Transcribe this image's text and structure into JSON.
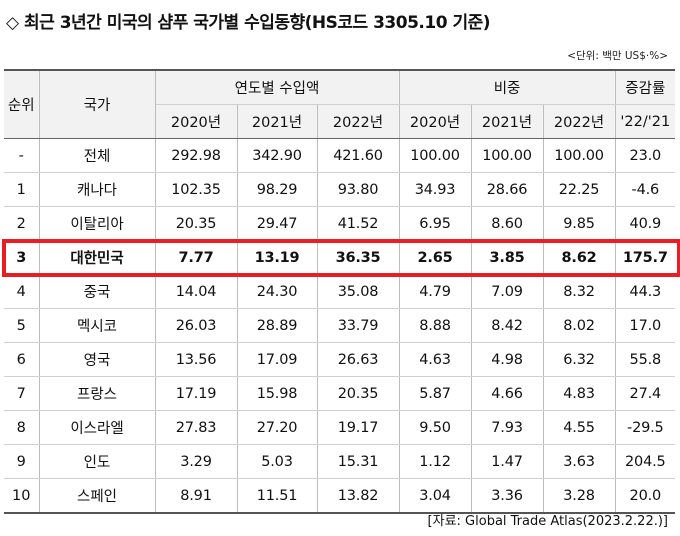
{
  "title": "◇ 최근 3년간 미국의 샴푸 국가별 수입동향(HS코드 3305.10 기준)",
  "unit_note": "<단위: 백만 US$·%>",
  "header": {
    "rank": "순위",
    "country": "국가",
    "import_group": "연도별 수입액",
    "share_group": "비중",
    "growth_group": "증감률",
    "years": [
      "2020년",
      "2021년",
      "2022년"
    ],
    "growth_period": "'22/'21"
  },
  "rows": [
    [
      "-",
      "전체",
      "292.98",
      "342.90",
      "421.60",
      "100.00",
      "100.00",
      "100.00",
      "23.0"
    ],
    [
      "1",
      "캐나다",
      "102.35",
      "98.29",
      "93.80",
      "34.93",
      "28.66",
      "22.25",
      "-4.6"
    ],
    [
      "2",
      "이탈리아",
      "20.35",
      "29.47",
      "41.52",
      "6.95",
      "8.60",
      "9.85",
      "40.9"
    ],
    [
      "3",
      "대한민국",
      "7.77",
      "13.19",
      "36.35",
      "2.65",
      "3.85",
      "8.62",
      "175.7"
    ],
    [
      "4",
      "중국",
      "14.04",
      "24.30",
      "35.08",
      "4.79",
      "7.09",
      "8.32",
      "44.3"
    ],
    [
      "5",
      "멕시코",
      "26.03",
      "28.89",
      "33.79",
      "8.88",
      "8.42",
      "8.02",
      "17.0"
    ],
    [
      "6",
      "영국",
      "13.56",
      "17.09",
      "26.63",
      "4.63",
      "4.98",
      "6.32",
      "55.8"
    ],
    [
      "7",
      "프랑스",
      "17.19",
      "15.98",
      "20.35",
      "5.87",
      "4.66",
      "4.83",
      "27.4"
    ],
    [
      "8",
      "이스라엘",
      "27.83",
      "27.20",
      "19.17",
      "9.50",
      "7.93",
      "4.55",
      "-29.5"
    ],
    [
      "9",
      "인도",
      "3.29",
      "5.03",
      "15.31",
      "1.12",
      "1.47",
      "3.63",
      "204.5"
    ],
    [
      "10",
      "스페인",
      "8.91",
      "11.51",
      "13.82",
      "3.04",
      "3.36",
      "3.28",
      "20.0"
    ]
  ],
  "highlight_row": 3,
  "highlight_color": "#ea1d25",
  "source": "[자료: Global Trade Atlas(2023.2.22.)]"
}
